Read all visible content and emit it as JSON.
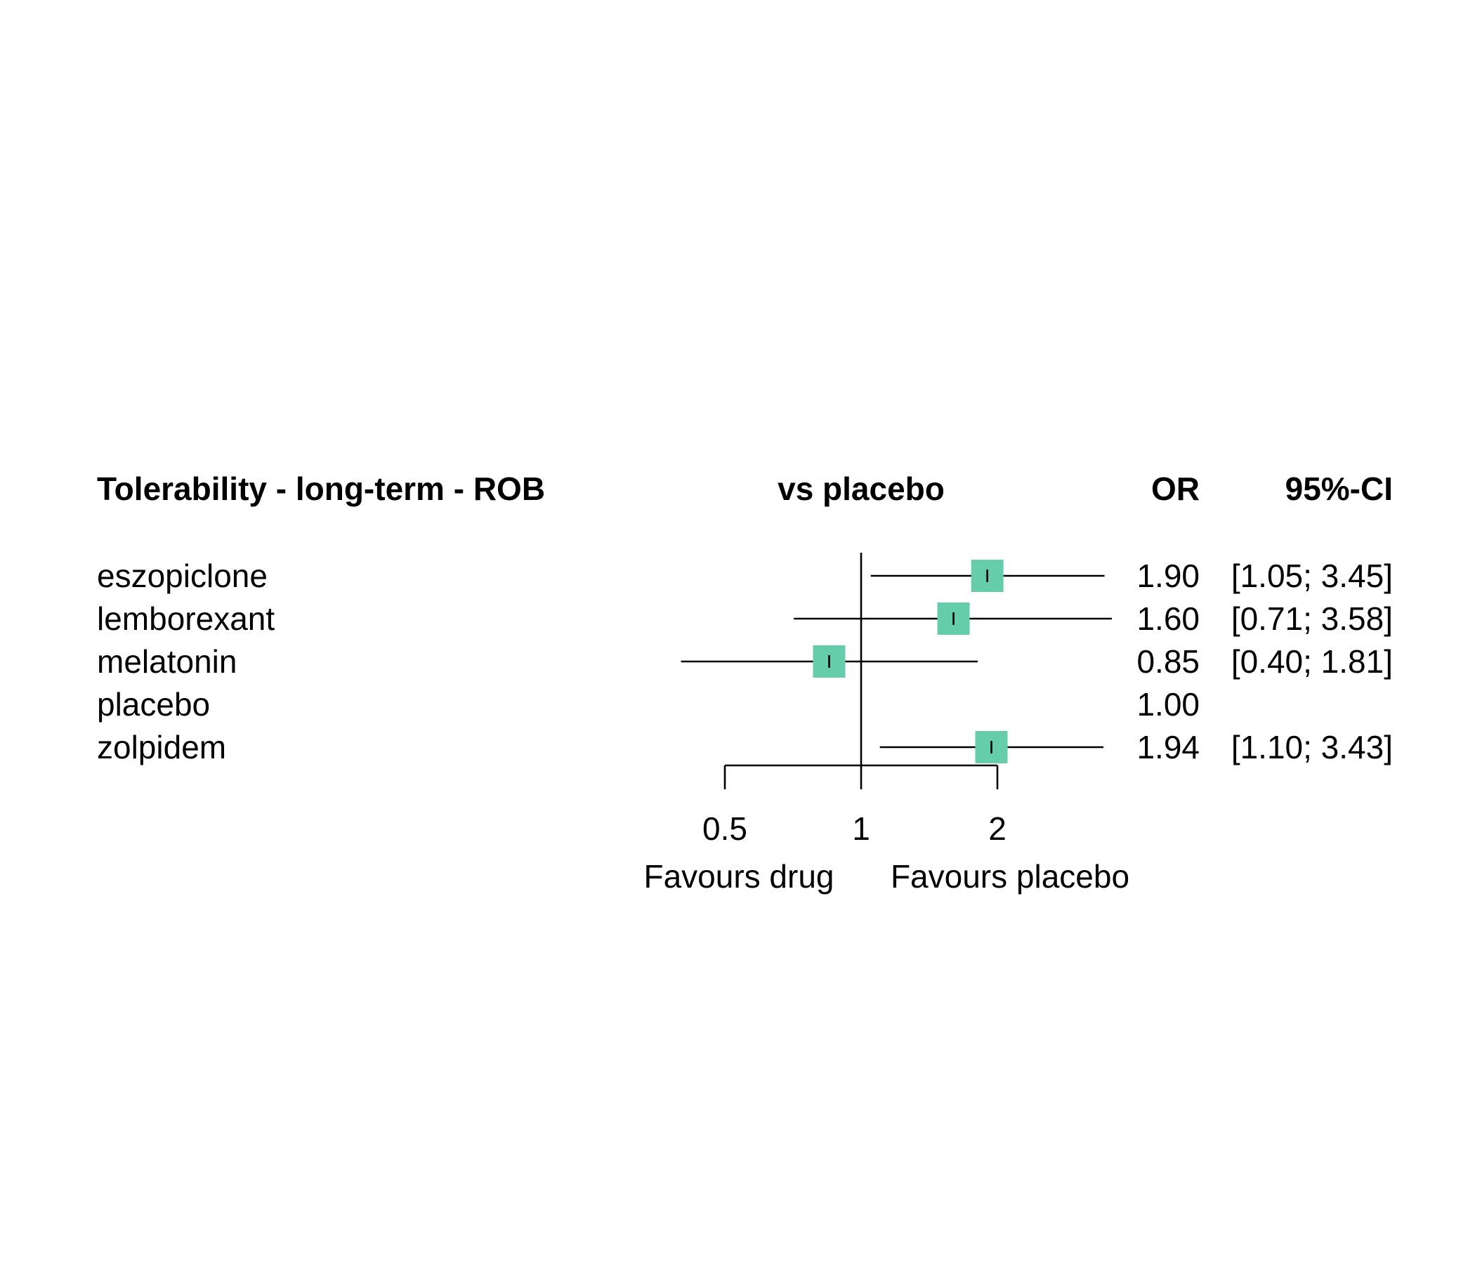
{
  "chart_data": {
    "type": "forest",
    "title": "Tolerability - long-term - ROB",
    "comparison_header": "vs placebo",
    "estimate_header": "OR",
    "ci_header": "95%-CI",
    "scale": "log",
    "reference_value": 1,
    "ticks": [
      0.5,
      1,
      2
    ],
    "tick_labels": [
      "0.5",
      "1",
      "2"
    ],
    "left_annotation": "Favours drug",
    "right_annotation": "Favours placebo",
    "box_color": "#66cdaa",
    "rows": [
      {
        "name": "eszopiclone",
        "or": 1.9,
        "lower": 1.05,
        "upper": 3.45,
        "or_text": "1.90",
        "ci_text": "[1.05; 3.45]"
      },
      {
        "name": "lemborexant",
        "or": 1.6,
        "lower": 0.71,
        "upper": 3.58,
        "or_text": "1.60",
        "ci_text": "[0.71; 3.58]"
      },
      {
        "name": "melatonin",
        "or": 0.85,
        "lower": 0.4,
        "upper": 1.81,
        "or_text": "0.85",
        "ci_text": "[0.40; 1.81]"
      },
      {
        "name": "placebo",
        "or": 1.0,
        "lower": null,
        "upper": null,
        "or_text": "1.00",
        "ci_text": ""
      },
      {
        "name": "zolpidem",
        "or": 1.94,
        "lower": 1.1,
        "upper": 3.43,
        "or_text": "1.94",
        "ci_text": "[1.10; 3.43]"
      }
    ]
  }
}
